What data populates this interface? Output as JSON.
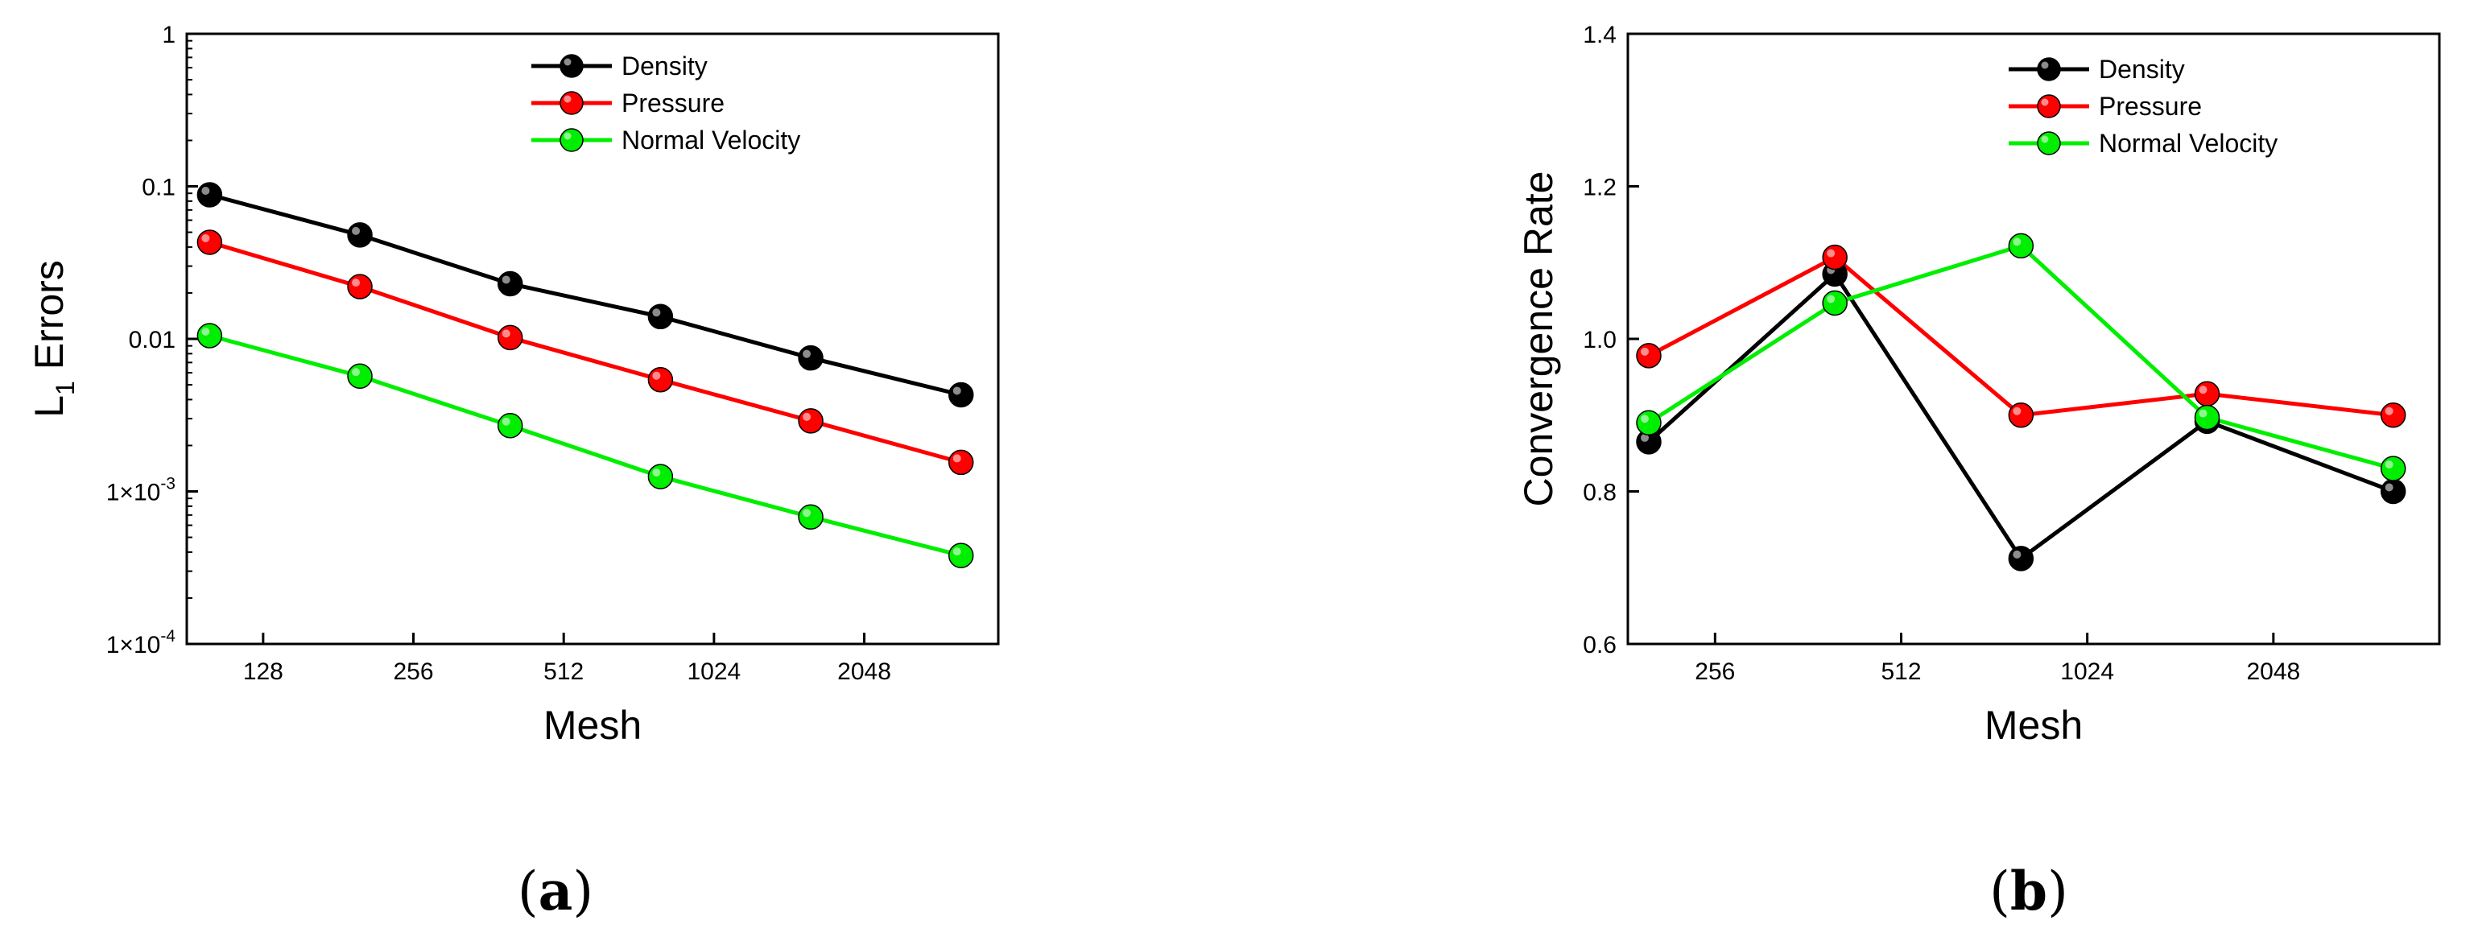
{
  "chart_data": [
    {
      "type": "line",
      "panel_label": "(a)",
      "panel_letter": "a",
      "xlabel": "Mesh",
      "ylabel": "L",
      "ylabel_subscript": "1",
      "ylabel_suffix": " Errors",
      "x_scale": "log2",
      "y_scale": "log10",
      "xlim": [
        90,
        3800
      ],
      "ylim": [
        0.0001,
        1
      ],
      "x_ticks": [
        128,
        256,
        512,
        1024,
        2048
      ],
      "x_tick_labels": [
        "128",
        "256",
        "512",
        "1024",
        "2048"
      ],
      "y_ticks": [
        {
          "value": 1,
          "label": "1"
        },
        {
          "value": 0.1,
          "label": "0.1"
        },
        {
          "value": 0.01,
          "label": "0.01"
        },
        {
          "value": 0.001,
          "base": "1×10",
          "exp": "-3"
        },
        {
          "value": 0.0001,
          "base": "1×10",
          "exp": "-4"
        }
      ],
      "x": [
        100,
        200,
        400,
        800,
        1600,
        3200
      ],
      "legend_position": "top-right",
      "series": [
        {
          "name": "Density",
          "color": "#000000",
          "values": [
            0.088,
            0.048,
            0.023,
            0.014,
            0.0075,
            0.0043
          ]
        },
        {
          "name": "Pressure",
          "color": "#ff0000",
          "values": [
            0.043,
            0.022,
            0.0102,
            0.0054,
            0.0029,
            0.00155
          ]
        },
        {
          "name": "Normal Velocity",
          "color": "#00ee00",
          "values": [
            0.0105,
            0.0057,
            0.0027,
            0.00125,
            0.00068,
            0.00038
          ]
        }
      ]
    },
    {
      "type": "line",
      "panel_label": "(b)",
      "panel_letter": "b",
      "xlabel": "Mesh",
      "ylabel": "Convergence Rate",
      "x_scale": "log2",
      "xlim": [
        185,
        3800
      ],
      "ylim": [
        0.6,
        1.4
      ],
      "x_ticks": [
        256,
        512,
        1024,
        2048
      ],
      "x_tick_labels": [
        "256",
        "512",
        "1024",
        "2048"
      ],
      "y_ticks": [
        {
          "value": 0.6,
          "label": "0.6"
        },
        {
          "value": 0.8,
          "label": "0.8"
        },
        {
          "value": 1.0,
          "label": "1.0"
        },
        {
          "value": 1.2,
          "label": "1.2"
        },
        {
          "value": 1.4,
          "label": "1.4"
        }
      ],
      "x": [
        200,
        400,
        800,
        1600,
        3200
      ],
      "legend_position": "top-right",
      "series": [
        {
          "name": "Density",
          "color": "#000000",
          "values": [
            0.865,
            1.085,
            0.712,
            0.892,
            0.8
          ]
        },
        {
          "name": "Pressure",
          "color": "#ff0000",
          "values": [
            0.978,
            1.107,
            0.9,
            0.928,
            0.9
          ]
        },
        {
          "name": "Normal Velocity",
          "color": "#00ee00",
          "values": [
            0.89,
            1.047,
            1.122,
            0.897,
            0.83
          ]
        }
      ]
    }
  ]
}
